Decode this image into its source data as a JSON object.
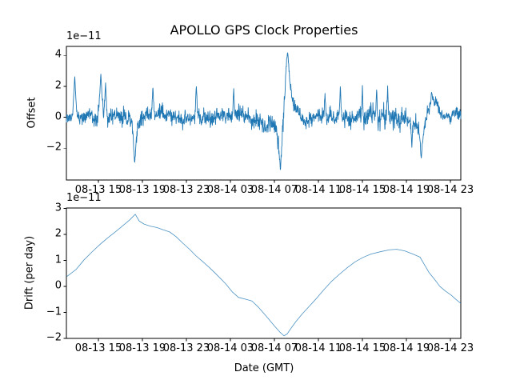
{
  "figure": {
    "background": "#ffffff"
  },
  "chart_data": [
    {
      "type": "line",
      "subplot": "top",
      "title": "APOLLO GPS Clock Properties",
      "ylabel": "Offset",
      "scale_label": "1e−11",
      "x_tick_labels": [
        "08-13 15",
        "08-13 19",
        "08-13 23",
        "08-14 03",
        "08-14 07",
        "08-14 11",
        "08-14 15",
        "08-14 19",
        "08-14 23"
      ],
      "x_tick_hours": [
        15,
        19,
        23,
        27,
        31,
        35,
        39,
        43,
        47
      ],
      "y_tick_labels": [
        "4",
        "2",
        "0",
        "−2"
      ],
      "y_tick_values": [
        4,
        2,
        0,
        -2
      ],
      "xlim": [
        12.09,
        47.95
      ],
      "ylim": [
        -4.05,
        4.58
      ],
      "line_color": "#1f77b4",
      "noise_seed": 814,
      "envelope": [
        [
          12.09,
          0.05,
          0.4
        ],
        [
          13.6,
          0.0,
          0.42
        ],
        [
          14.8,
          0.05,
          0.45
        ],
        [
          16.2,
          0.05,
          0.55
        ],
        [
          17.6,
          -0.05,
          0.6
        ],
        [
          18.7,
          -0.3,
          0.6
        ],
        [
          19.4,
          0.3,
          0.5
        ],
        [
          20.6,
          0.25,
          0.55
        ],
        [
          21.8,
          -0.05,
          0.5
        ],
        [
          23.2,
          0.0,
          0.5
        ],
        [
          24.6,
          0.15,
          0.55
        ],
        [
          26.2,
          0.1,
          0.5
        ],
        [
          27.6,
          0.1,
          0.55
        ],
        [
          29.0,
          -0.15,
          0.55
        ],
        [
          30.0,
          -0.4,
          0.55
        ],
        [
          30.9,
          -0.3,
          0.5
        ],
        [
          31.35,
          -1.5,
          0.7
        ],
        [
          31.75,
          -0.5,
          0.9
        ],
        [
          32.15,
          2.2,
          0.7
        ],
        [
          32.6,
          1.3,
          0.5
        ],
        [
          33.1,
          0.3,
          0.5
        ],
        [
          33.7,
          -0.25,
          0.5
        ],
        [
          34.6,
          -0.05,
          0.55
        ],
        [
          36.0,
          0.0,
          0.5
        ],
        [
          37.5,
          0.05,
          0.55
        ],
        [
          38.8,
          0.1,
          0.6
        ],
        [
          40.0,
          0.15,
          0.75
        ],
        [
          41.2,
          0.1,
          0.8
        ],
        [
          42.3,
          0.05,
          0.7
        ],
        [
          43.2,
          -0.3,
          0.65
        ],
        [
          43.9,
          -0.7,
          0.6
        ],
        [
          44.5,
          -1.3,
          0.6
        ],
        [
          44.9,
          0.3,
          0.5
        ],
        [
          45.5,
          1.05,
          0.45
        ],
        [
          46.1,
          0.4,
          0.4
        ],
        [
          46.8,
          0.1,
          0.38
        ],
        [
          47.95,
          0.2,
          0.35
        ]
      ],
      "spikes": [
        [
          12.85,
          2.7,
          0.28,
          1.6
        ],
        [
          15.22,
          2.85,
          0.3,
          1.6
        ],
        [
          15.65,
          2.3,
          0.18,
          1.5
        ],
        [
          18.3,
          -3.05,
          0.4,
          1.8
        ],
        [
          19.95,
          2.1,
          0.15,
          1.5
        ],
        [
          23.9,
          2.15,
          0.15,
          1.5
        ],
        [
          27.3,
          1.95,
          0.12,
          1.5
        ],
        [
          31.55,
          -3.55,
          0.3,
          2.0
        ],
        [
          32.2,
          4.25,
          0.55,
          2.2
        ],
        [
          35.6,
          1.7,
          0.12,
          1.5
        ],
        [
          37.0,
          2.15,
          0.12,
          1.5
        ],
        [
          39.0,
          2.15,
          0.12,
          1.5
        ],
        [
          40.3,
          1.95,
          0.12,
          1.5
        ],
        [
          41.3,
          2.05,
          0.12,
          1.5
        ],
        [
          43.5,
          -1.95,
          0.15,
          1.5
        ],
        [
          44.35,
          -2.75,
          0.25,
          1.8
        ],
        [
          45.3,
          1.65,
          0.2,
          1.5
        ]
      ]
    },
    {
      "type": "line",
      "subplot": "bottom",
      "ylabel": "Drift (per day)",
      "xlabel": "Date (GMT)",
      "scale_label": "1e−11",
      "x_tick_labels": [
        "08-13 15",
        "08-13 19",
        "08-13 23",
        "08-14 03",
        "08-14 07",
        "08-14 11",
        "08-14 15",
        "08-14 19",
        "08-14 23"
      ],
      "x_tick_hours": [
        15,
        19,
        23,
        27,
        31,
        35,
        39,
        43,
        47
      ],
      "y_tick_labels": [
        "3",
        "2",
        "1",
        "0",
        "−1",
        "−2"
      ],
      "y_tick_values": [
        3,
        2,
        1,
        0,
        -1,
        -2
      ],
      "xlim": [
        12.09,
        47.95
      ],
      "ylim": [
        -2.0,
        3.02
      ],
      "line_color": "#1f77b4",
      "points": [
        [
          12.09,
          0.37
        ],
        [
          12.96,
          0.65
        ],
        [
          13.69,
          1.02
        ],
        [
          14.42,
          1.33
        ],
        [
          15.15,
          1.62
        ],
        [
          15.87,
          1.88
        ],
        [
          16.6,
          2.12
        ],
        [
          17.33,
          2.38
        ],
        [
          17.84,
          2.56
        ],
        [
          18.35,
          2.78
        ],
        [
          18.71,
          2.52
        ],
        [
          19.15,
          2.4
        ],
        [
          19.73,
          2.32
        ],
        [
          20.31,
          2.27
        ],
        [
          20.89,
          2.18
        ],
        [
          21.47,
          2.1
        ],
        [
          22.05,
          1.92
        ],
        [
          22.64,
          1.68
        ],
        [
          23.29,
          1.43
        ],
        [
          23.87,
          1.18
        ],
        [
          24.45,
          0.97
        ],
        [
          25.11,
          0.72
        ],
        [
          25.69,
          0.48
        ],
        [
          26.56,
          0.11
        ],
        [
          27.15,
          -0.2
        ],
        [
          27.73,
          -0.42
        ],
        [
          28.38,
          -0.49
        ],
        [
          28.96,
          -0.56
        ],
        [
          29.55,
          -0.8
        ],
        [
          30.27,
          -1.15
        ],
        [
          31.0,
          -1.52
        ],
        [
          31.51,
          -1.76
        ],
        [
          31.87,
          -1.9
        ],
        [
          32.16,
          -1.83
        ],
        [
          32.53,
          -1.6
        ],
        [
          32.96,
          -1.35
        ],
        [
          33.55,
          -1.05
        ],
        [
          34.2,
          -0.75
        ],
        [
          34.85,
          -0.45
        ],
        [
          35.51,
          -0.12
        ],
        [
          36.16,
          0.18
        ],
        [
          36.89,
          0.46
        ],
        [
          37.62,
          0.72
        ],
        [
          38.35,
          0.95
        ],
        [
          39.07,
          1.12
        ],
        [
          39.8,
          1.25
        ],
        [
          40.67,
          1.34
        ],
        [
          41.47,
          1.41
        ],
        [
          42.13,
          1.43
        ],
        [
          42.85,
          1.37
        ],
        [
          43.58,
          1.25
        ],
        [
          44.24,
          1.13
        ],
        [
          44.67,
          0.82
        ],
        [
          45.04,
          0.55
        ],
        [
          45.55,
          0.28
        ],
        [
          46.05,
          0.0
        ],
        [
          46.56,
          -0.18
        ],
        [
          47.07,
          -0.33
        ],
        [
          47.51,
          -0.5
        ],
        [
          47.95,
          -0.65
        ]
      ]
    }
  ]
}
